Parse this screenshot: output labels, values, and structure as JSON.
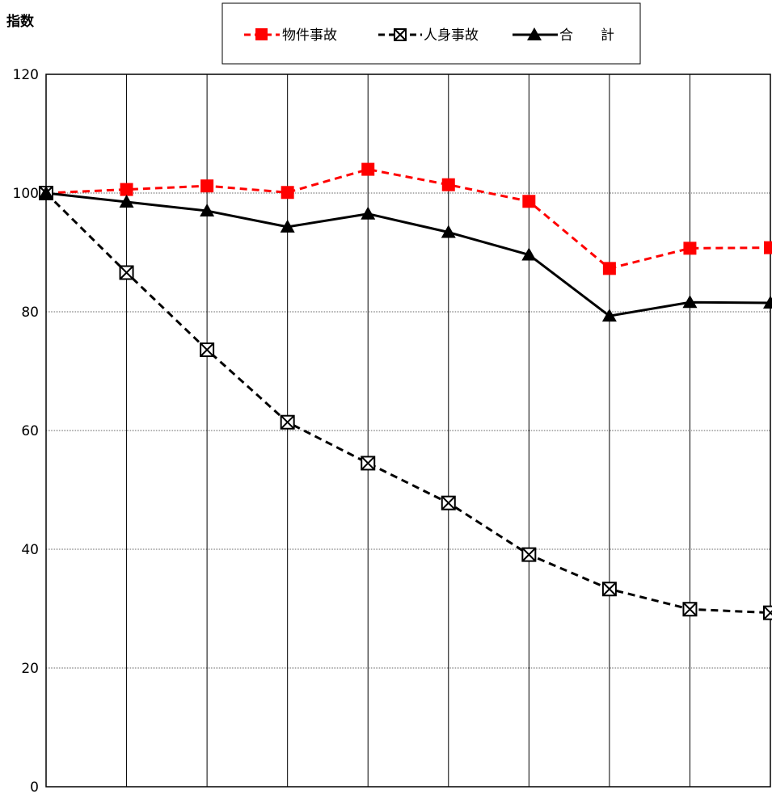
{
  "chart_data": {
    "type": "line",
    "ylabel": "指数",
    "ylim": [
      0,
      120
    ],
    "yticks": [
      0,
      20,
      40,
      60,
      80,
      100,
      120
    ],
    "x": [
      1,
      2,
      3,
      4,
      5,
      6,
      7,
      8,
      9,
      10
    ],
    "grid": true,
    "legend_position": "top-center",
    "series": [
      {
        "name": "物件事故",
        "values": [
          100,
          100.6,
          101.2,
          100.1,
          104.0,
          101.4,
          98.6,
          87.3,
          90.7,
          90.8
        ],
        "color": "#ff0000",
        "dash": "dashed",
        "marker": "square"
      },
      {
        "name": "人身事故",
        "values": [
          100,
          86.6,
          73.6,
          61.4,
          54.5,
          47.8,
          39.1,
          33.3,
          29.9,
          29.3
        ],
        "color": "#000000",
        "dash": "dashed",
        "marker": "x-square"
      },
      {
        "name": "合　　計",
        "values": [
          100,
          98.5,
          97.0,
          94.3,
          96.5,
          93.4,
          89.6,
          79.3,
          81.6,
          81.5
        ],
        "color": "#000000",
        "dash": "solid",
        "marker": "triangle"
      }
    ]
  }
}
